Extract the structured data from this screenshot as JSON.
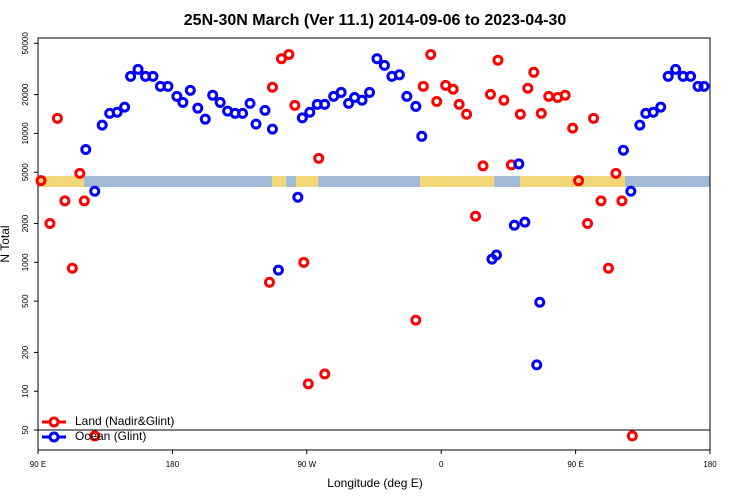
{
  "chart_data": {
    "type": "scatter",
    "title": "25N-30N March (Ver 11.1)   2014-09-06 to 2023-04-30",
    "x_label": "Longitude (deg E)",
    "y_label": "N Total",
    "log_y": true,
    "xlim": [
      -270,
      180
    ],
    "ylim": [
      35,
      55000
    ],
    "xticks": [
      {
        "value": -270,
        "label": "90 E"
      },
      {
        "value": -180,
        "label": "180"
      },
      {
        "value": -90,
        "label": "90 W"
      },
      0,
      {
        "value": 90,
        "label": "90 E"
      },
      180
    ],
    "yticks": [
      50,
      100,
      200,
      500,
      1000,
      2000,
      5000,
      10000,
      20000,
      50000
    ],
    "hline": 50,
    "legend": "bottom-left",
    "series": [
      {
        "name": "Land (Nadir&Glint)",
        "color": "#ff0000",
        "x": [
          -268,
          -262,
          -257,
          -252,
          -247,
          -242,
          -239,
          -232,
          -115,
          -113,
          -107,
          -102,
          -98,
          -92,
          -89,
          -82,
          -78,
          -17,
          -12,
          -7,
          -3,
          3,
          8,
          12,
          17,
          23,
          28,
          33,
          38,
          42,
          47,
          53,
          58,
          62,
          67,
          72,
          78,
          83,
          88,
          92,
          98,
          102,
          107,
          112,
          117,
          121,
          128
        ],
        "values": [
          4300,
          2000,
          13100,
          3000,
          900,
          4900,
          3000,
          45,
          700,
          22800,
          38000,
          41000,
          16500,
          1000,
          114,
          6400,
          136,
          356,
          23200,
          41000,
          17700,
          23600,
          22000,
          16800,
          14100,
          2280,
          5600,
          20100,
          37000,
          18100,
          5700,
          14100,
          22400,
          29800,
          14300,
          19400,
          19000,
          19800,
          11000,
          4300,
          2000,
          13100,
          3000,
          900,
          4900,
          3000,
          45
        ]
      },
      {
        "name": "Ocean (Glint)",
        "color": "#0000ff",
        "x": [
          -238,
          -232,
          -227,
          -222,
          -217,
          -212,
          -208,
          -203,
          -198,
          -193,
          -188,
          -183,
          -177,
          -173,
          -168,
          -163,
          -158,
          -153,
          -148,
          -143,
          -138,
          -133,
          -128,
          -124,
          -118,
          -113,
          -109,
          -96,
          -93,
          -88,
          -83,
          -78,
          -72,
          -67,
          -62,
          -58,
          -53,
          -48,
          -43,
          -38,
          -33,
          -28,
          -23,
          -17,
          -13,
          34,
          37,
          49,
          52,
          56,
          64,
          66,
          122,
          127,
          133,
          137,
          142,
          147,
          152,
          157,
          162,
          167,
          172,
          176
        ],
        "values": [
          7500,
          3560,
          11600,
          14300,
          14600,
          16000,
          27700,
          31400,
          27700,
          27700,
          23200,
          23200,
          19400,
          17400,
          21600,
          15700,
          12900,
          19800,
          17400,
          14900,
          14300,
          14300,
          17100,
          11800,
          15100,
          10800,
          870,
          3200,
          13200,
          14600,
          16800,
          16800,
          19400,
          20800,
          17100,
          19000,
          18100,
          20800,
          38000,
          33700,
          27700,
          28500,
          19400,
          16200,
          9500,
          1060,
          1140,
          1940,
          5800,
          2050,
          160,
          490,
          7400,
          3560,
          11600,
          14300,
          14600,
          16000,
          27700,
          31400,
          27700,
          27700,
          23200,
          23200
        ]
      }
    ]
  }
}
